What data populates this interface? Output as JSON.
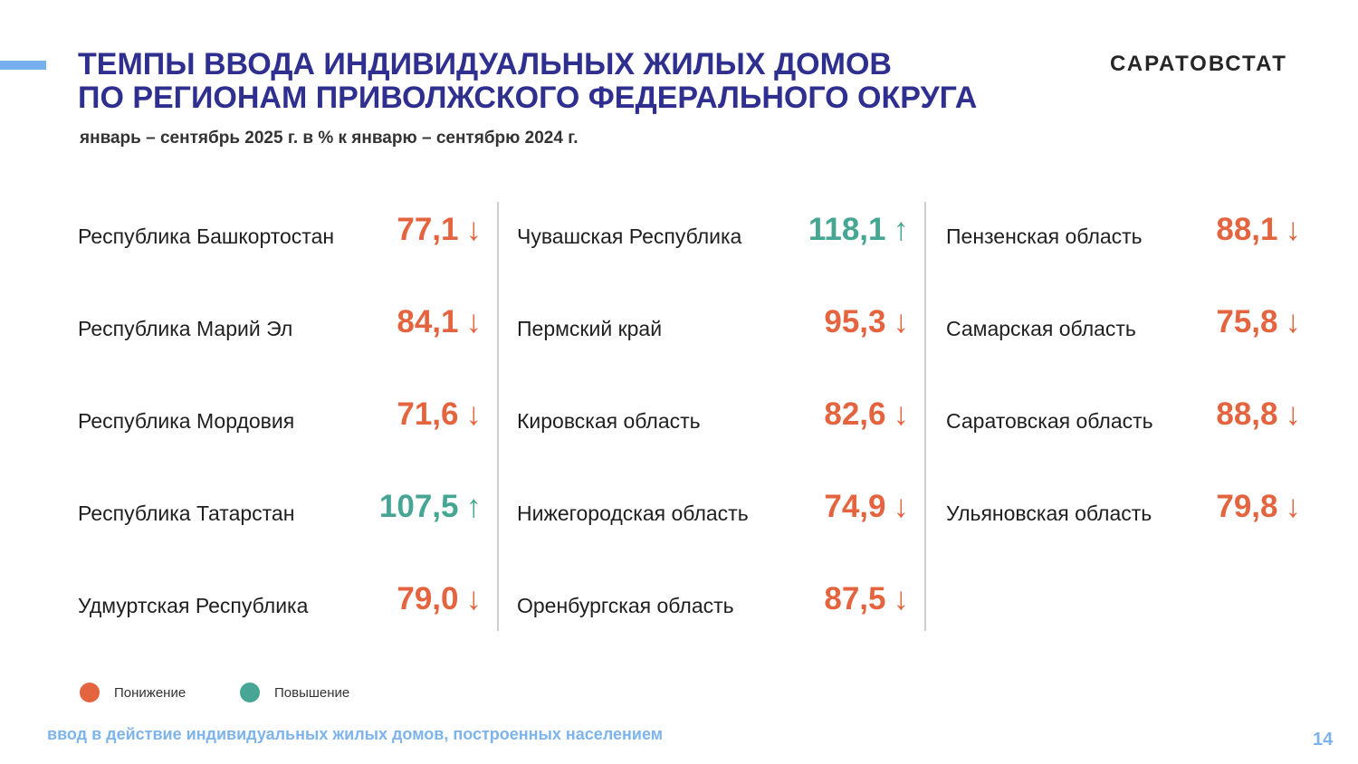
{
  "header": {
    "title_line1": "ТЕМПЫ ВВОДА ИНДИВИДУАЛЬНЫХ ЖИЛЫХ ДОМОВ",
    "title_line2": "ПО РЕГИОНАМ ПРИВОЛЖСКОГО ФЕДЕРАЛЬНОГО ОКРУГА",
    "subtitle": "январь – сентябрь 2025 г.  в % к январю – сентябрю 2024 г.",
    "brand": "САРАТОВСТАТ"
  },
  "colors": {
    "down": "#e4643f",
    "up": "#46a693",
    "title": "#2f2f8f",
    "accent": "#77b0ef"
  },
  "columns": [
    [
      {
        "region": "Республика Башкортостан",
        "value": "77,1",
        "trend": "down"
      },
      {
        "region": "Республика Марий Эл",
        "value": "84,1",
        "trend": "down"
      },
      {
        "region": "Республика Мордовия",
        "value": "71,6",
        "trend": "down"
      },
      {
        "region": "Республика Татарстан",
        "value": "107,5",
        "trend": "up"
      },
      {
        "region": "Удмуртская Республика",
        "value": "79,0",
        "trend": "down"
      }
    ],
    [
      {
        "region": "Чувашская Республика",
        "value": "118,1",
        "trend": "up"
      },
      {
        "region": "Пермский край",
        "value": "95,3",
        "trend": "down"
      },
      {
        "region": "Кировская область",
        "value": "82,6",
        "trend": "down"
      },
      {
        "region": "Нижегородская область",
        "value": "74,9",
        "trend": "down"
      },
      {
        "region": "Оренбургская область",
        "value": "87,5",
        "trend": "down"
      }
    ],
    [
      {
        "region": "Пензенская область",
        "value": "88,1",
        "trend": "down"
      },
      {
        "region": "Самарская область",
        "value": "75,8",
        "trend": "down"
      },
      {
        "region": "Саратовская область",
        "value": "88,8",
        "trend": "down"
      },
      {
        "region": "Ульяновская область",
        "value": "79,8",
        "trend": "down"
      }
    ]
  ],
  "arrows": {
    "down": "↓",
    "up": "↑"
  },
  "legend": {
    "decrease": "Понижение",
    "increase": "Повышение"
  },
  "footer": {
    "note": "ввод в действие индивидуальных жилых домов, построенных населением",
    "page": "14"
  }
}
